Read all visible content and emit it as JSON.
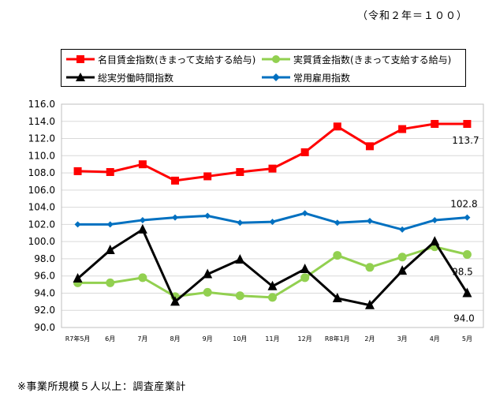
{
  "base_note": "（令和２年＝１００）",
  "footnote": "※事業所規模５人以上：調査産業計",
  "chart_data": {
    "type": "line",
    "categories": [
      "R7年5月",
      "6月",
      "7月",
      "8月",
      "9月",
      "10月",
      "11月",
      "12月",
      "R8年1月",
      "2月",
      "3月",
      "4月",
      "5月"
    ],
    "ylim": [
      90.0,
      116.0
    ],
    "ytick_step": 2.0,
    "yticks": [
      "90.0",
      "92.0",
      "94.0",
      "96.0",
      "98.0",
      "100.0",
      "102.0",
      "104.0",
      "106.0",
      "108.0",
      "110.0",
      "112.0",
      "114.0",
      "116.0"
    ],
    "grid": true,
    "legend_position": "top",
    "series": [
      {
        "name": "名目賃金指数(きまって支給する給与)",
        "color": "#ff0000",
        "marker": "square",
        "values": [
          108.2,
          108.1,
          109.0,
          107.1,
          107.6,
          108.1,
          108.5,
          110.4,
          113.4,
          111.1,
          113.1,
          113.7,
          113.7
        ],
        "end_label": "113.7"
      },
      {
        "name": "実質賃金指数(きまって支給する給与)",
        "color": "#92d050",
        "marker": "circle",
        "values": [
          95.2,
          95.2,
          95.8,
          93.6,
          94.1,
          93.7,
          93.5,
          95.8,
          98.4,
          97.0,
          98.2,
          99.4,
          98.5
        ],
        "end_label": "98.5"
      },
      {
        "name": "総実労働時間指数",
        "color": "#000000",
        "marker": "triangle",
        "values": [
          95.7,
          99.0,
          101.4,
          93.0,
          96.2,
          97.9,
          94.8,
          96.8,
          93.4,
          92.6,
          96.6,
          100.0,
          94.0
        ],
        "end_label": "94.0"
      },
      {
        "name": "常用雇用指数",
        "color": "#0070c0",
        "marker": "diamond",
        "values": [
          102.0,
          102.0,
          102.5,
          102.8,
          103.0,
          102.2,
          102.3,
          103.3,
          102.2,
          102.4,
          101.4,
          102.5,
          102.8
        ],
        "end_label": "102.8"
      }
    ]
  }
}
